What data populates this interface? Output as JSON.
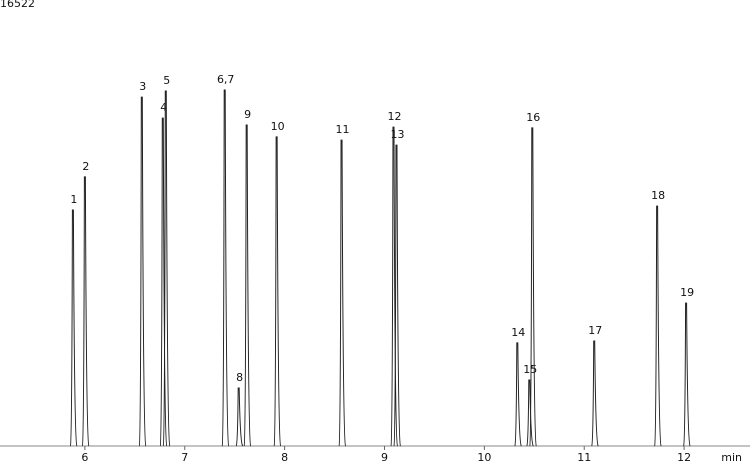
{
  "chart_data": {
    "type": "chromatogram",
    "x_unit": "min",
    "labels": [
      "1",
      "2",
      "3",
      "4",
      "5",
      "6,7",
      "8",
      "9",
      "10",
      "11",
      "12",
      "13",
      "14",
      "15",
      "16",
      "17",
      "18",
      "19"
    ],
    "x": [
      5.88,
      6.0,
      6.57,
      6.78,
      6.81,
      7.4,
      7.54,
      7.62,
      7.92,
      8.57,
      9.09,
      9.12,
      10.33,
      10.45,
      10.48,
      11.1,
      11.73,
      12.02
    ],
    "values": [
      8900,
      10150,
      13160,
      12370,
      13390,
      13430,
      2190,
      12110,
      11660,
      11540,
      12030,
      11350,
      3890,
      2490,
      12000,
      3960,
      9050,
      5390
    ],
    "color": "#222222",
    "xlim": [
      5.15,
      12.66
    ],
    "xticks": [
      6,
      7,
      8,
      9,
      10,
      11,
      12
    ],
    "ylim": [
      0,
      16522
    ],
    "yticks": [
      16522
    ]
  }
}
